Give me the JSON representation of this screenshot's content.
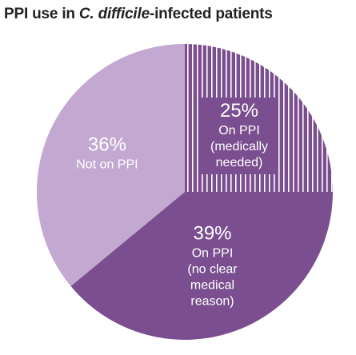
{
  "title": {
    "before": "PPI use in ",
    "italic": "C. difficile",
    "after": "-infected patients"
  },
  "chart_data": {
    "type": "pie",
    "title": "PPI use in C. difficile-infected patients",
    "start_angle_deg": 0,
    "direction": "clockwise",
    "slices": [
      {
        "value": 25,
        "pct_label": "25%",
        "label_lines": [
          "On PPI",
          "(medically",
          "needed)"
        ],
        "color": "#7b4f8f",
        "pattern": "vertical-stripes"
      },
      {
        "value": 39,
        "pct_label": "39%",
        "label_lines": [
          "On PPI",
          "(no clear",
          "medical",
          "reason)"
        ],
        "color": "#7b4f8f",
        "pattern": "solid"
      },
      {
        "value": 36,
        "pct_label": "36%",
        "label_lines": [
          "Not on PPI"
        ],
        "color": "#c3a9d1",
        "pattern": "solid"
      }
    ]
  }
}
